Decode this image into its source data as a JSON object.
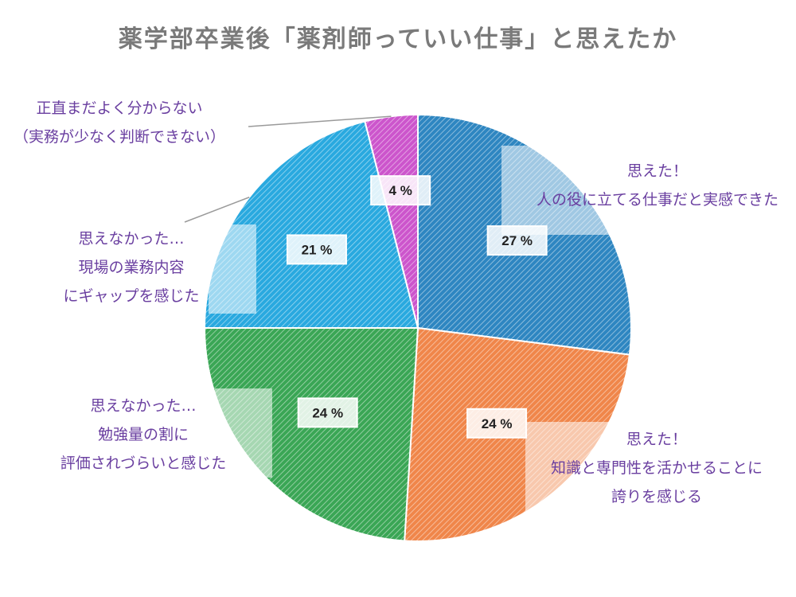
{
  "chart_data": {
    "type": "pie",
    "title": "薬学部卒業後「薬剤師っていい仕事」と思えたか",
    "slices": [
      {
        "value": 27,
        "label_text": "27 %",
        "lines": [
          "思えた！",
          "人の役に立てる仕事だと実感できた"
        ],
        "color": "#2e86c1"
      },
      {
        "value": 24,
        "label_text": "24 %",
        "lines": [
          "思えた！",
          "知識と専門性を活かせることに",
          "誇りを感じる"
        ],
        "color": "#f0864a"
      },
      {
        "value": 24,
        "label_text": "24 %",
        "lines": [
          "思えなかった…",
          "勉強量の割に",
          "評価されづらいと感じた"
        ],
        "color": "#3aa655"
      },
      {
        "value": 21,
        "label_text": "21 %",
        "lines": [
          "思えなかった…",
          "現場の業務内容",
          "にギャップを感じた"
        ],
        "color": "#29a9df"
      },
      {
        "value": 4,
        "label_text": "4 %",
        "lines": [
          "正直まだよく分からない",
          "（実務が少なく判断できない）"
        ],
        "color": "#cc55cc"
      }
    ]
  }
}
